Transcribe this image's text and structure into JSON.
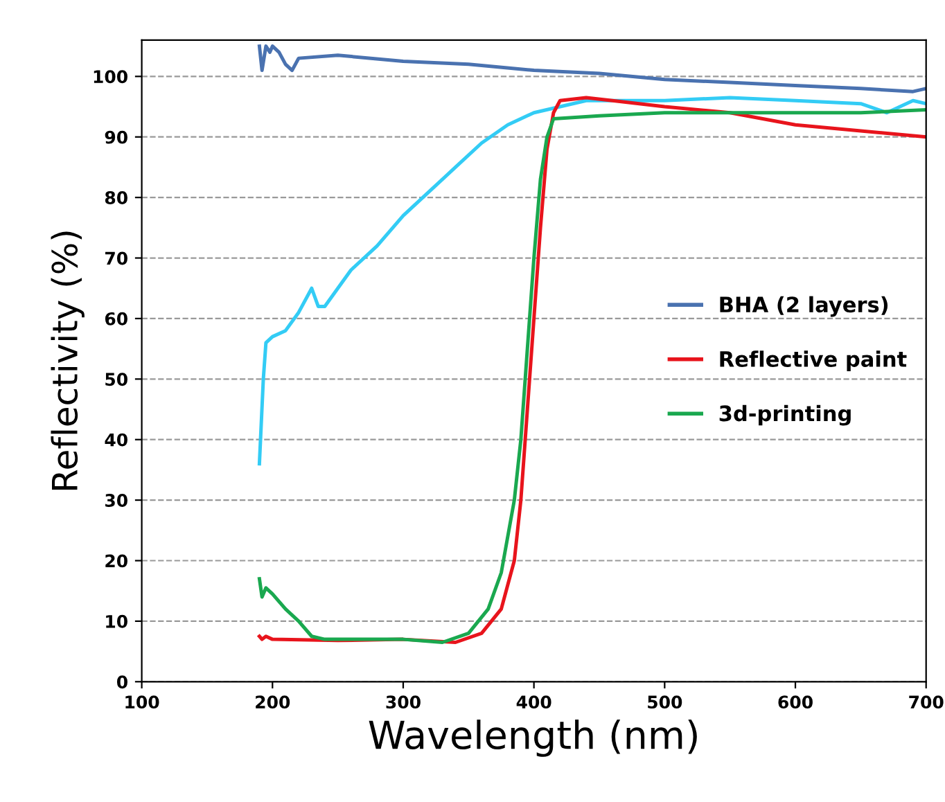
{
  "chart_data": {
    "type": "line",
    "xlabel": "Wavelength (nm)",
    "ylabel": "Reflectivity (%)",
    "xlim": [
      100,
      700
    ],
    "ylim": [
      0,
      106
    ],
    "xticks": [
      100,
      200,
      300,
      400,
      500,
      600,
      700
    ],
    "yticks": [
      0,
      10,
      20,
      30,
      40,
      50,
      60,
      70,
      80,
      90,
      100
    ],
    "grid": "y",
    "legend": "right",
    "line_style": "solid",
    "marker": "none",
    "series": [
      {
        "color": "#33ccf5",
        "x": [
          190,
          193,
          195,
          200,
          210,
          220,
          230,
          235,
          240,
          250,
          260,
          280,
          300,
          320,
          340,
          360,
          380,
          400,
          420,
          440,
          460,
          500,
          550,
          600,
          650,
          670,
          690,
          700
        ],
        "values": [
          36,
          50,
          56,
          57,
          58,
          61,
          65,
          62,
          62,
          65,
          68,
          72,
          77,
          81,
          85,
          89,
          92,
          94,
          95,
          96,
          96,
          96,
          96.5,
          96,
          95.5,
          94,
          96,
          95.5
        ]
      },
      {
        "name": "BHA (2 layers)",
        "color": "#4a72b0",
        "x": [
          190,
          192,
          195,
          198,
          200,
          205,
          210,
          215,
          220,
          250,
          300,
          350,
          400,
          450,
          500,
          550,
          600,
          650,
          690,
          700
        ],
        "values": [
          105,
          101,
          105,
          104,
          105,
          104,
          102,
          101,
          103,
          103.5,
          102.5,
          102,
          101,
          100.5,
          99.5,
          99,
          98.5,
          98,
          97.5,
          98
        ]
      },
      {
        "name": "Reflective paint",
        "color": "#e8141c",
        "x": [
          190,
          192,
          195,
          200,
          250,
          300,
          340,
          360,
          375,
          385,
          390,
          395,
          400,
          405,
          410,
          415,
          420,
          440,
          460,
          500,
          550,
          600,
          650,
          700
        ],
        "values": [
          7.5,
          7,
          7.5,
          7,
          6.8,
          7,
          6.5,
          8,
          12,
          20,
          30,
          45,
          60,
          75,
          88,
          94,
          96,
          96.5,
          96,
          95,
          94,
          92,
          91,
          90
        ]
      },
      {
        "name": "3d-printing",
        "color": "#1aa84f",
        "x": [
          190,
          192,
          195,
          200,
          210,
          220,
          230,
          240,
          300,
          330,
          350,
          365,
          375,
          385,
          390,
          395,
          400,
          405,
          410,
          415,
          450,
          500,
          550,
          600,
          650,
          700
        ],
        "values": [
          17,
          14,
          15.5,
          14.5,
          12,
          10,
          7.5,
          7,
          7,
          6.5,
          8,
          12,
          18,
          30,
          40,
          55,
          70,
          83,
          90,
          93,
          93.5,
          94,
          94,
          94,
          94,
          94.5
        ]
      }
    ]
  }
}
